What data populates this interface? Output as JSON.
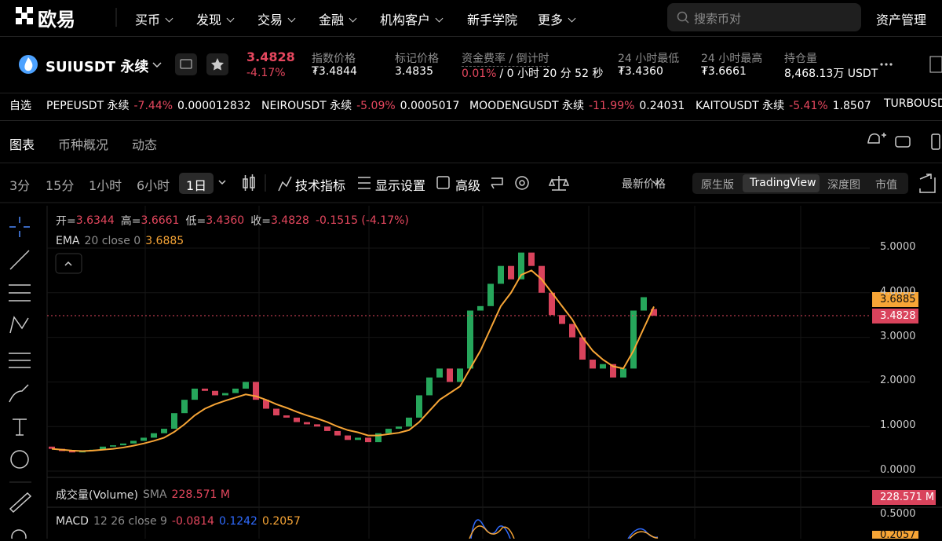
{
  "nav": {
    "logo": "欧易",
    "items": [
      "买币",
      "发现",
      "交易",
      "金融",
      "机构客户",
      "新手学院",
      "更多"
    ],
    "search": "搜索币对",
    "asset": "资产管理"
  },
  "ticker": {
    "symbol": "SUIUSDT 永续",
    "price": "3.4828",
    "change": "-4.17%",
    "stats": [
      {
        "label": "指数价格",
        "value": "₮3.4844"
      },
      {
        "label": "标记价格",
        "value": "3.4835"
      },
      {
        "label": "资金费率 / 倒计时",
        "value": "0.01%",
        "value2": "/ 0 小时 20 分 52 秒"
      },
      {
        "label": "24 小时最低",
        "value": "₮3.4360"
      },
      {
        "label": "24 小时最高",
        "value": "₮3.6661"
      },
      {
        "label": "持仓量",
        "value": "8,468.13万 USDT"
      }
    ]
  },
  "favorites": {
    "label": "自选",
    "items": [
      {
        "symbol": "PEPEUSDT 永续",
        "change": "-7.44%",
        "price": "0.000012832"
      },
      {
        "symbol": "NEIROUSDT 永续",
        "change": "-5.09%",
        "price": "0.0005017"
      },
      {
        "symbol": "MOODENGUSDT 永续",
        "change": "-11.99%",
        "price": "0.24031"
      },
      {
        "symbol": "KAITOUSDT 永续",
        "change": "-5.41%",
        "price": "1.8507"
      },
      {
        "symbol": "TURBOUSDT"
      }
    ]
  },
  "tabs": [
    "图表",
    "币种概况",
    "动态"
  ],
  "toolbar": {
    "intervals": [
      "3分",
      "15分",
      "1小时",
      "6小时",
      "1日"
    ],
    "buttons": [
      "技术指标",
      "显示设置",
      "高级"
    ],
    "price_type": "最新价格",
    "views": [
      "原生版",
      "TradingView",
      "深度图",
      "市值"
    ]
  },
  "chart": {
    "legend": {
      "open_label": "开=",
      "open": "3.6344",
      "high_label": "高=",
      "high": "3.6661",
      "low_label": "低=",
      "low": "3.4360",
      "close_label": "收=",
      "close": "3.4828",
      "change": "-0.1515 (-4.17%)"
    },
    "ema_legend": {
      "name": "EMA",
      "params": "20 close 0",
      "value": "3.6885"
    },
    "volume_legend": {
      "name": "成交量(Volume)",
      "ma": "SMA",
      "value": "228.571 M"
    },
    "macd_legend": {
      "name": "MACD",
      "params": "12 26 close 9",
      "hist": "-0.0814",
      "macd": "0.1242",
      "signal": "0.2057"
    },
    "macd_ticks": [
      "0.5000"
    ],
    "ylim": [
      -0.14,
      5.95
    ],
    "yticks": [
      {
        "value": 5,
        "label": "5.0000"
      },
      {
        "value": 4,
        "label": "4.0000"
      },
      {
        "value": 3,
        "label": "3.0000"
      },
      {
        "value": 2,
        "label": "2.0000"
      },
      {
        "value": 1,
        "label": "1.0000"
      },
      {
        "value": 0,
        "label": "0.0000"
      }
    ],
    "opens": [
      0.55,
      0.5,
      0.45,
      0.42,
      0.45,
      0.48,
      0.55,
      0.58,
      0.62,
      0.68,
      0.75,
      0.85,
      0.95,
      1.3,
      1.6,
      1.85,
      1.8,
      1.7,
      1.75,
      1.85,
      2.0,
      1.6,
      1.4,
      1.25,
      1.2,
      1.1,
      1.05,
      1.0,
      0.9,
      0.8,
      0.7,
      0.75,
      0.65,
      0.85,
      0.95,
      1.0,
      1.2,
      1.7,
      2.1,
      2.3,
      2.0,
      2.3,
      3.6,
      3.7,
      4.2,
      4.6,
      4.3,
      4.9,
      4.6,
      4.0,
      3.5,
      3.3,
      3.0,
      2.5,
      2.3,
      2.4,
      2.1,
      2.3,
      3.6,
      3.6344
    ],
    "closes": [
      0.5,
      0.45,
      0.42,
      0.45,
      0.48,
      0.55,
      0.58,
      0.62,
      0.68,
      0.75,
      0.85,
      0.95,
      1.3,
      1.6,
      1.85,
      1.8,
      1.7,
      1.75,
      1.85,
      2.0,
      1.6,
      1.4,
      1.25,
      1.2,
      1.1,
      1.05,
      1.0,
      0.9,
      0.8,
      0.7,
      0.75,
      0.65,
      0.85,
      0.95,
      1.0,
      1.2,
      1.7,
      2.1,
      2.3,
      2.0,
      2.3,
      3.6,
      3.7,
      4.2,
      4.6,
      4.3,
      4.9,
      4.6,
      4.0,
      3.5,
      3.3,
      3.0,
      2.5,
      2.3,
      2.4,
      2.1,
      2.3,
      3.6,
      3.9,
      3.4828
    ],
    "ema": [
      0.5,
      0.48,
      0.46,
      0.45,
      0.46,
      0.48,
      0.5,
      0.53,
      0.57,
      0.62,
      0.68,
      0.75,
      0.88,
      1.05,
      1.25,
      1.4,
      1.5,
      1.58,
      1.65,
      1.72,
      1.68,
      1.6,
      1.5,
      1.42,
      1.33,
      1.25,
      1.18,
      1.1,
      1.0,
      0.92,
      0.87,
      0.8,
      0.8,
      0.83,
      0.86,
      0.92,
      1.1,
      1.35,
      1.6,
      1.75,
      1.9,
      2.3,
      2.7,
      3.2,
      3.7,
      4.0,
      4.4,
      4.5,
      4.3,
      4.0,
      3.7,
      3.4,
      3.0,
      2.7,
      2.5,
      2.35,
      2.3,
      2.7,
      3.2,
      3.6885
    ]
  }
}
